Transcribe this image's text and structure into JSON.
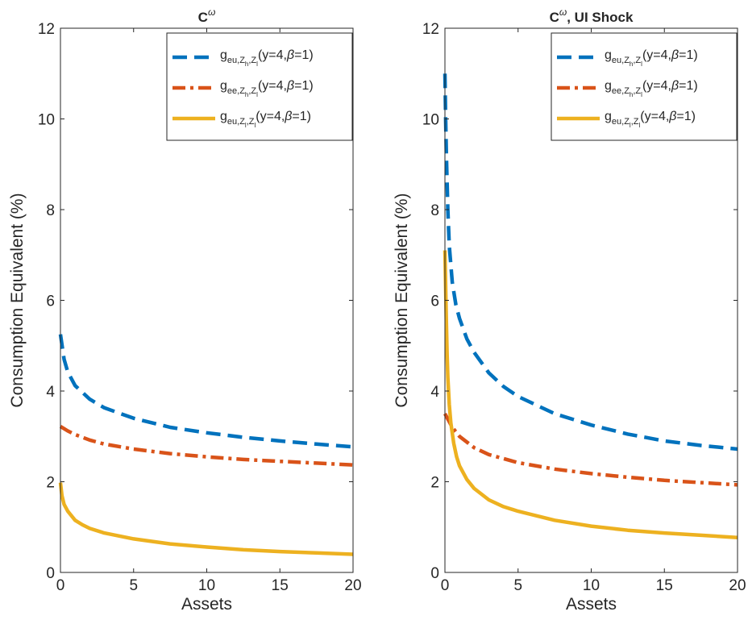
{
  "chart_data": [
    {
      "type": "line",
      "title": "C",
      "title_superscript": "ω",
      "xlabel": "Assets",
      "ylabel": "Consumption Equivalent (%)",
      "xlim": [
        0,
        20
      ],
      "ylim": [
        0,
        12
      ],
      "xticks": [
        "0",
        "5",
        "10",
        "15",
        "20"
      ],
      "yticks": [
        "0",
        "2",
        "4",
        "6",
        "8",
        "10",
        "12"
      ],
      "grid": false,
      "legend_position": "top-right",
      "series": [
        {
          "name": "g_eu,Z_h,Z_l(y=4,β=1)",
          "legend": {
            "base": "g",
            "sub": "eu,Z",
            "sub_z1": "h",
            "sub_mid": ",Z",
            "sub_z2": "l",
            "args": "(y=4,",
            "beta": "β",
            "args_end": "=1)"
          },
          "color": "#0072BD",
          "style": "dashed",
          "x": [
            0,
            0.25,
            0.5,
            1,
            2,
            3,
            5,
            7.5,
            10,
            12.5,
            15,
            17.5,
            20
          ],
          "y": [
            5.25,
            4.7,
            4.42,
            4.12,
            3.82,
            3.63,
            3.4,
            3.2,
            3.08,
            2.98,
            2.9,
            2.83,
            2.77
          ]
        },
        {
          "name": "g_ee,Z_h,Z_l(y=4,β=1)",
          "legend": {
            "base": "g",
            "sub": "ee,Z",
            "sub_z1": "h",
            "sub_mid": ",Z",
            "sub_z2": "l",
            "args": "(y=4,",
            "beta": "β",
            "args_end": "=1)"
          },
          "color": "#D95319",
          "style": "dashdot",
          "x": [
            0,
            0.5,
            1,
            2,
            3,
            5,
            7.5,
            10,
            12.5,
            15,
            17.5,
            20
          ],
          "y": [
            3.22,
            3.12,
            3.04,
            2.92,
            2.83,
            2.72,
            2.62,
            2.55,
            2.49,
            2.45,
            2.41,
            2.37
          ]
        },
        {
          "name": "g_eu,Z_l,Z_l(y=4,β=1)",
          "legend": {
            "base": "g",
            "sub": "eu,Z",
            "sub_z1": "l",
            "sub_mid": ",Z",
            "sub_z2": "l",
            "args": "(y=4,",
            "beta": "β",
            "args_end": "=1)"
          },
          "color": "#EDB120",
          "style": "solid",
          "x": [
            0,
            0.1,
            0.25,
            0.5,
            1,
            1.5,
            2,
            3,
            5,
            7.5,
            10,
            12.5,
            15,
            17.5,
            20
          ],
          "y": [
            1.98,
            1.7,
            1.5,
            1.35,
            1.15,
            1.05,
            0.97,
            0.87,
            0.74,
            0.63,
            0.56,
            0.5,
            0.46,
            0.43,
            0.4
          ]
        }
      ]
    },
    {
      "type": "line",
      "title": "C",
      "title_superscript": "ω",
      "title_suffix": ", UI Shock",
      "xlabel": "Assets",
      "ylabel": "Consumption Equivalent (%)",
      "xlim": [
        0,
        20
      ],
      "ylim": [
        0,
        12
      ],
      "xticks": [
        "0",
        "5",
        "10",
        "15",
        "20"
      ],
      "yticks": [
        "0",
        "2",
        "4",
        "6",
        "8",
        "10",
        "12"
      ],
      "grid": false,
      "legend_position": "top-right",
      "series": [
        {
          "name": "g_eu,Z_h,Z_l(y=4,β=1)",
          "legend": {
            "base": "g",
            "sub": "eu,Z",
            "sub_z1": "h",
            "sub_mid": ",Z",
            "sub_z2": "l",
            "args": "(y=4,",
            "beta": "β",
            "args_end": "=1)"
          },
          "color": "#0072BD",
          "style": "dashed",
          "x": [
            0,
            0.05,
            0.1,
            0.2,
            0.3,
            0.5,
            0.75,
            1,
            1.5,
            2,
            3,
            4,
            5,
            7.5,
            10,
            12.5,
            15,
            17.5,
            20
          ],
          "y": [
            11,
            10,
            9.2,
            8.0,
            7.2,
            6.4,
            5.9,
            5.6,
            5.15,
            4.85,
            4.4,
            4.1,
            3.88,
            3.5,
            3.25,
            3.05,
            2.9,
            2.8,
            2.72
          ]
        },
        {
          "name": "g_ee,Z_h,Z_l(y=4,β=1)",
          "legend": {
            "base": "g",
            "sub": "ee,Z",
            "sub_z1": "h",
            "sub_mid": ",Z",
            "sub_z2": "l",
            "args": "(y=4,",
            "beta": "β",
            "args_end": "=1)"
          },
          "color": "#D95319",
          "style": "dashdot",
          "x": [
            0,
            0.5,
            1,
            2,
            3,
            5,
            7.5,
            10,
            12.5,
            15,
            17.5,
            20
          ],
          "y": [
            3.5,
            3.2,
            3.0,
            2.75,
            2.6,
            2.42,
            2.28,
            2.18,
            2.1,
            2.03,
            1.98,
            1.93
          ]
        },
        {
          "name": "g_eu,Z_l,Z_l(y=4,β=1)",
          "legend": {
            "base": "g",
            "sub": "eu,Z",
            "sub_z1": "l",
            "sub_mid": ",Z",
            "sub_z2": "l",
            "args": "(y=4,",
            "beta": "β",
            "args_end": "=1)"
          },
          "color": "#EDB120",
          "style": "solid",
          "x": [
            0,
            0.05,
            0.1,
            0.15,
            0.2,
            0.3,
            0.4,
            0.6,
            0.8,
            1,
            1.5,
            2,
            3,
            4,
            5,
            7.5,
            10,
            12.5,
            15,
            17.5,
            20
          ],
          "y": [
            7.1,
            6.3,
            5.5,
            4.8,
            4.3,
            3.7,
            3.3,
            2.85,
            2.55,
            2.35,
            2.05,
            1.85,
            1.6,
            1.45,
            1.35,
            1.15,
            1.02,
            0.93,
            0.87,
            0.82,
            0.77
          ]
        }
      ]
    }
  ]
}
